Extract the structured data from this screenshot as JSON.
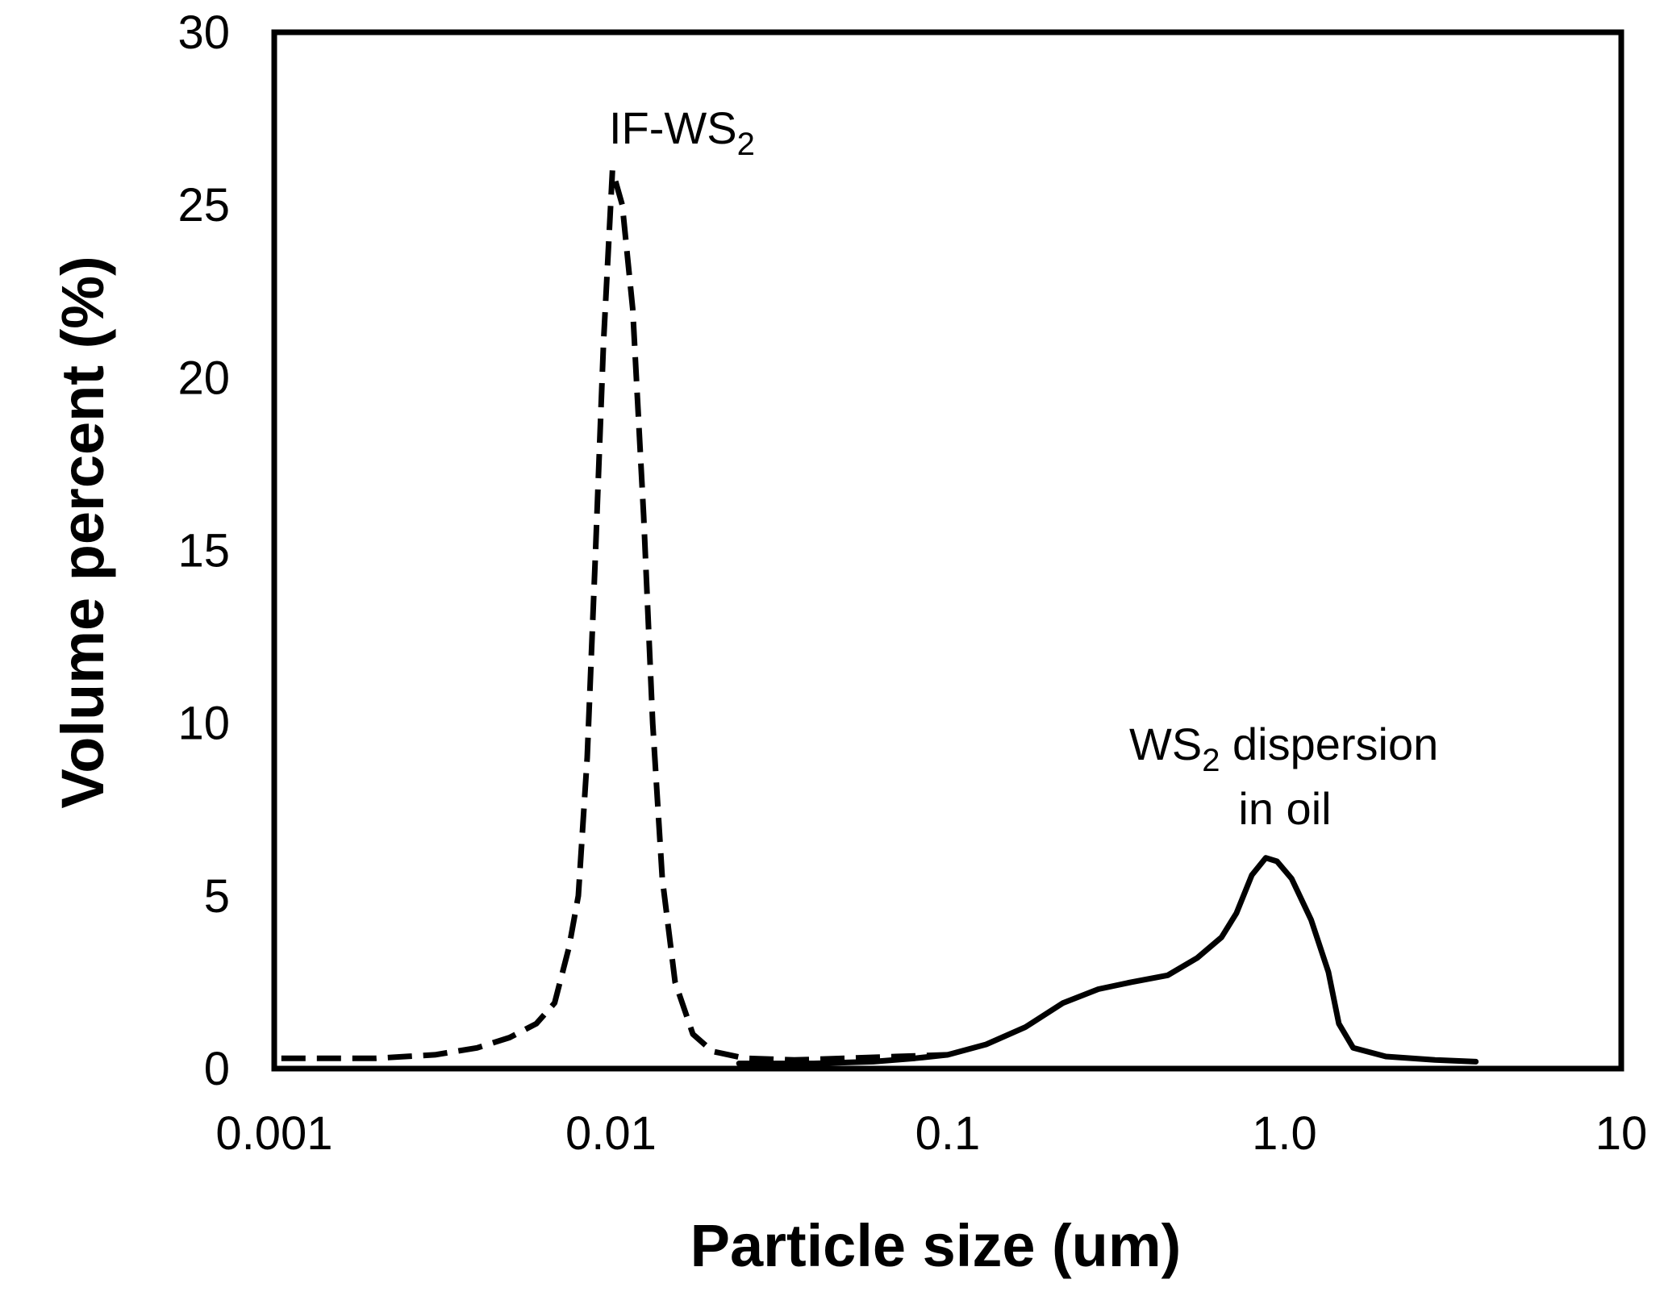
{
  "chart_data": {
    "type": "line",
    "xlabel": "Particle size (um)",
    "ylabel": "Volume percent (%)",
    "x_scale": "log",
    "xlim": [
      0.001,
      10
    ],
    "ylim": [
      0,
      30
    ],
    "x_ticks": [
      "0.001",
      "0.01",
      "0.1",
      "1.0",
      "10"
    ],
    "y_ticks": [
      "0",
      "5",
      "10",
      "15",
      "20",
      "25",
      "30"
    ],
    "grid": false,
    "legend": "none",
    "series": [
      {
        "style": "dashed",
        "color": "#000000",
        "points": [
          [
            0.00105,
            0.3
          ],
          [
            0.002,
            0.3
          ],
          [
            0.003,
            0.4
          ],
          [
            0.004,
            0.6
          ],
          [
            0.005,
            0.9
          ],
          [
            0.006,
            1.3
          ],
          [
            0.0068,
            1.9
          ],
          [
            0.0075,
            3.5
          ],
          [
            0.008,
            5.0
          ],
          [
            0.0085,
            9.0
          ],
          [
            0.009,
            15.0
          ],
          [
            0.0095,
            21.0
          ],
          [
            0.0101,
            26.0
          ],
          [
            0.0108,
            25.0
          ],
          [
            0.0116,
            22.0
          ],
          [
            0.0125,
            16.0
          ],
          [
            0.0133,
            10.0
          ],
          [
            0.0142,
            5.5
          ],
          [
            0.0155,
            2.5
          ],
          [
            0.0175,
            1.0
          ],
          [
            0.02,
            0.5
          ],
          [
            0.025,
            0.3
          ],
          [
            0.035,
            0.25
          ],
          [
            0.05,
            0.3
          ],
          [
            0.07,
            0.35
          ],
          [
            0.1,
            0.4
          ]
        ]
      },
      {
        "style": "solid",
        "color": "#000000",
        "points": [
          [
            0.024,
            0.15
          ],
          [
            0.04,
            0.15
          ],
          [
            0.06,
            0.2
          ],
          [
            0.08,
            0.3
          ],
          [
            0.1,
            0.4
          ],
          [
            0.13,
            0.7
          ],
          [
            0.17,
            1.2
          ],
          [
            0.22,
            1.9
          ],
          [
            0.28,
            2.3
          ],
          [
            0.35,
            2.5
          ],
          [
            0.45,
            2.7
          ],
          [
            0.55,
            3.2
          ],
          [
            0.65,
            3.8
          ],
          [
            0.72,
            4.5
          ],
          [
            0.8,
            5.6
          ],
          [
            0.88,
            6.1
          ],
          [
            0.95,
            6.0
          ],
          [
            1.05,
            5.5
          ],
          [
            1.2,
            4.3
          ],
          [
            1.35,
            2.8
          ],
          [
            1.45,
            1.3
          ],
          [
            1.6,
            0.6
          ],
          [
            2.0,
            0.35
          ],
          [
            2.8,
            0.25
          ],
          [
            3.7,
            0.2
          ]
        ]
      }
    ],
    "annotations": [
      {
        "id": "if",
        "parts": [
          "IF-WS",
          "2"
        ]
      },
      {
        "id": "disp",
        "parts": [
          "WS",
          "2",
          " dispersion",
          "in oil"
        ]
      }
    ]
  }
}
